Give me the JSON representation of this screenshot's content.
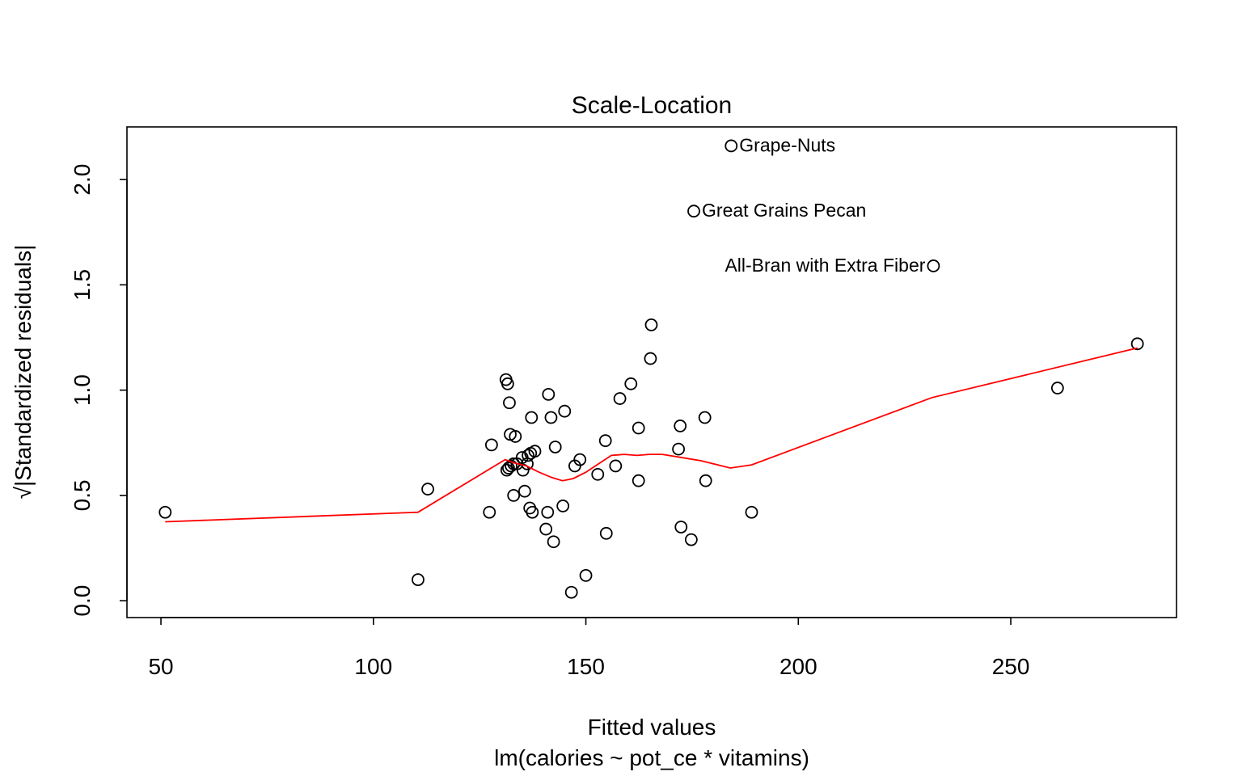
{
  "chart_data": {
    "type": "scatter",
    "title": "Scale-Location",
    "xlabel": "Fitted values",
    "subtitle": "lm(calories ~ pot_ce * vitamins)",
    "ylabel": "√|Standardized residuals|",
    "xlim": [
      42,
      289
    ],
    "ylim": [
      -0.08,
      2.25
    ],
    "xticks": [
      50,
      100,
      150,
      200,
      250
    ],
    "xtick_labels": [
      "50",
      "100",
      "150",
      "200",
      "250"
    ],
    "yticks": [
      0.0,
      0.5,
      1.0,
      1.5,
      2.0
    ],
    "ytick_labels": [
      "0.0",
      "0.5",
      "1.0",
      "1.5",
      "2.0"
    ],
    "grid": false,
    "colors": {
      "points": "#000000",
      "smoother": "#ff0000"
    },
    "points": {
      "x": [
        51.0,
        110.5,
        112.8,
        127.3,
        127.8,
        131.2,
        131.6,
        132.0,
        132.2,
        131.4,
        131.8,
        132.4,
        133.0,
        133.4,
        133.0,
        133.8,
        135.0,
        135.2,
        135.6,
        136.4,
        136.8,
        137.0,
        137.4,
        137.2,
        138.0,
        136.2,
        140.6,
        141.0,
        141.2,
        141.8,
        142.4,
        142.8,
        144.6,
        145.0,
        146.6,
        147.4,
        148.6,
        150.0,
        152.8,
        154.6,
        154.8,
        157.0,
        158.0,
        160.6,
        162.4,
        162.4,
        165.2,
        165.4,
        171.8,
        172.2,
        172.4,
        174.8,
        175.4,
        178.0,
        178.2,
        184.2,
        189.0,
        231.8,
        261.0,
        279.8
      ],
      "y": [
        0.42,
        0.1,
        0.53,
        0.42,
        0.74,
        1.05,
        1.03,
        0.94,
        0.79,
        0.62,
        0.63,
        0.64,
        0.65,
        0.78,
        0.5,
        0.65,
        0.68,
        0.62,
        0.52,
        0.69,
        0.44,
        0.7,
        0.42,
        0.87,
        0.71,
        0.65,
        0.34,
        0.42,
        0.98,
        0.87,
        0.28,
        0.73,
        0.45,
        0.9,
        0.04,
        0.64,
        0.67,
        0.12,
        0.6,
        0.76,
        0.32,
        0.64,
        0.96,
        1.03,
        0.82,
        0.57,
        1.15,
        1.31,
        0.72,
        0.83,
        0.35,
        0.29,
        1.85,
        0.87,
        0.57,
        2.16,
        0.42,
        1.59,
        1.01,
        1.22
      ]
    },
    "annotations": [
      {
        "label": "Grape-Nuts",
        "x": 184.2,
        "y": 2.16,
        "side": "right"
      },
      {
        "label": "Great Grains Pecan",
        "x": 175.4,
        "y": 1.85,
        "side": "right"
      },
      {
        "label": "All-Bran with Extra Fiber",
        "x": 231.8,
        "y": 1.59,
        "side": "left"
      }
    ],
    "smoother": {
      "x": [
        51.0,
        110.5,
        131.0,
        133.0,
        136.0,
        139.0,
        142.0,
        144.5,
        147.0,
        150.0,
        153.0,
        156.0,
        159.0,
        162.0,
        165.0,
        168.0,
        171.0,
        174.0,
        177.0,
        180.0,
        184.0,
        189.0,
        231.5,
        279.8
      ],
      "y": [
        0.375,
        0.42,
        0.67,
        0.655,
        0.64,
        0.61,
        0.585,
        0.57,
        0.58,
        0.61,
        0.65,
        0.69,
        0.695,
        0.69,
        0.695,
        0.695,
        0.685,
        0.675,
        0.665,
        0.65,
        0.63,
        0.645,
        0.965,
        1.2
      ]
    }
  }
}
